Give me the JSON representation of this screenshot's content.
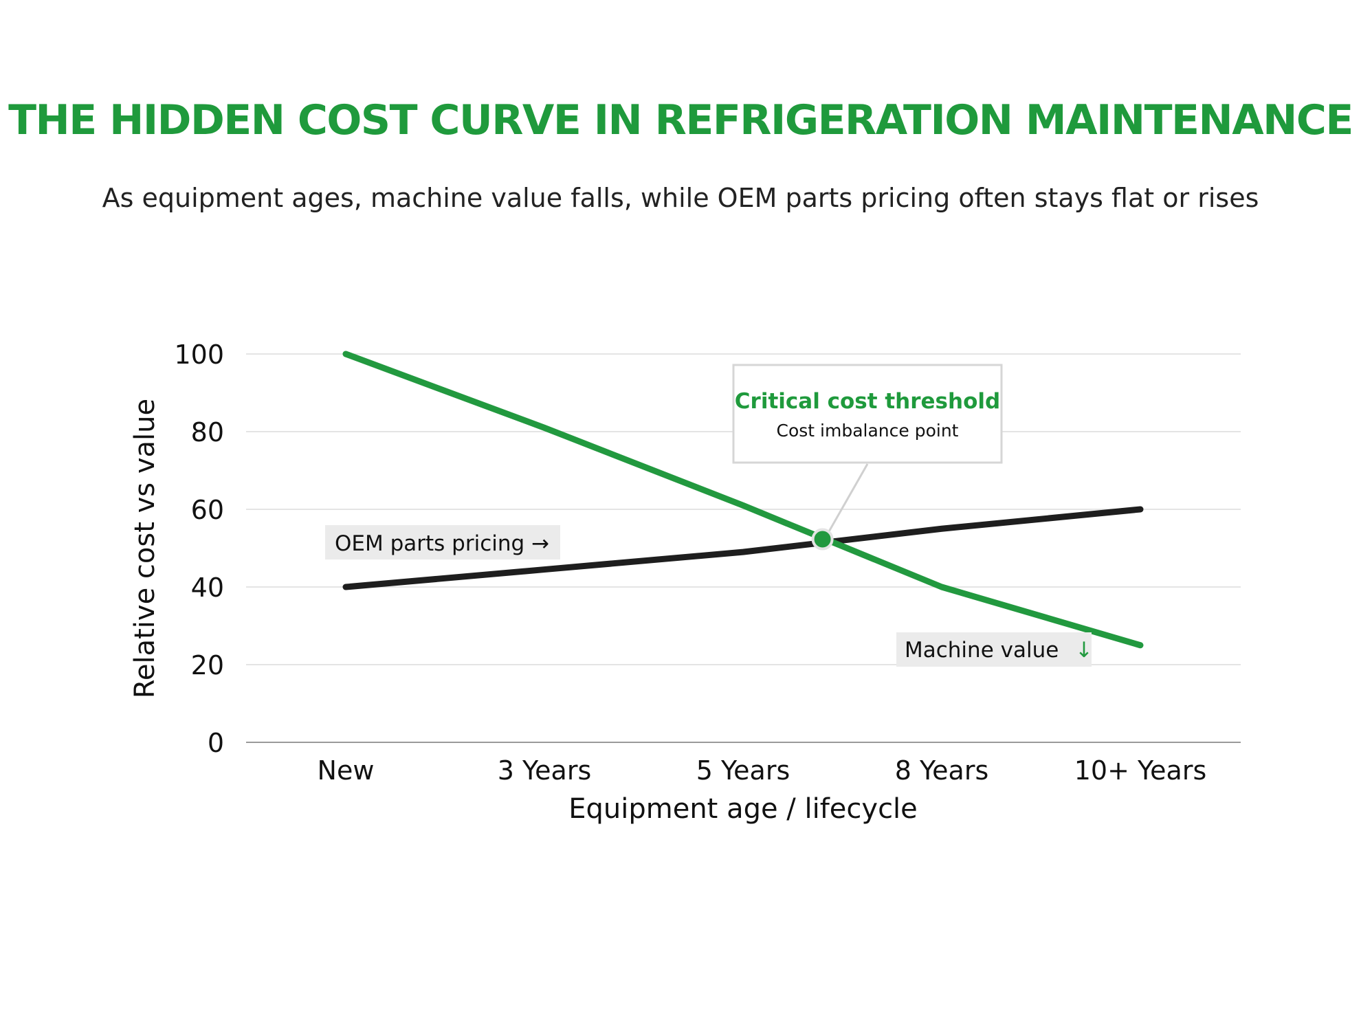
{
  "chart_data": {
    "type": "line",
    "title": "THE HIDDEN COST CURVE IN REFRIGERATION MAINTENANCE",
    "subtitle": "As equipment ages, machine value falls, while OEM parts pricing often stays flat or rises",
    "categories": [
      "New",
      "3 Years",
      "5 Years",
      "8 Years",
      "10+ Years"
    ],
    "xlabel": "Equipment age / lifecycle",
    "ylabel": "Relative cost vs value",
    "ylim": [
      0,
      100
    ],
    "yticks": [
      "0",
      "20",
      "40",
      "60",
      "80",
      "100"
    ],
    "grid": true,
    "series": [
      {
        "key": "machine",
        "values": [
          100,
          81,
          61,
          40,
          25
        ],
        "color": "#22993f"
      },
      {
        "key": "oem",
        "values": [
          40,
          44.5,
          49,
          55,
          60
        ],
        "color": "#1e1e1e"
      }
    ],
    "annotations": {
      "oem_label": "OEM parts pricing →",
      "machine_label": "Machine value",
      "machine_arrow": "↓",
      "callout_title": "Critical cost threshold",
      "callout_subtitle": "Cost imbalance point",
      "intersection": {
        "x": 2.4,
        "y": 52.3
      }
    }
  }
}
